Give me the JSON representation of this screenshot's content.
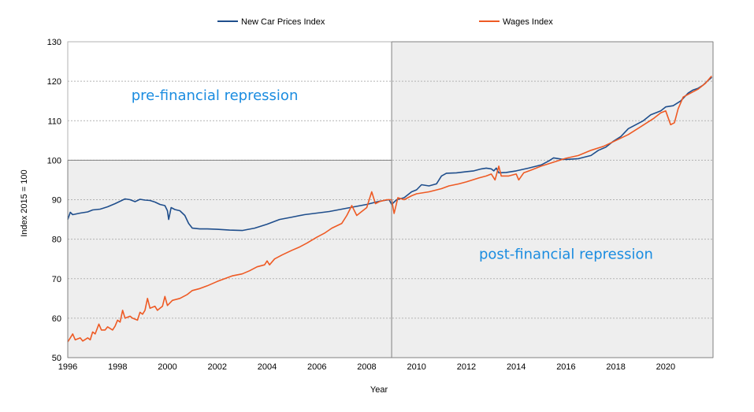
{
  "chart_data": {
    "type": "line",
    "xlabel": "Year",
    "ylabel": "Index 2015 = 100",
    "xlim": [
      1996,
      2021.9
    ],
    "ylim": [
      50,
      130
    ],
    "x_ticks": [
      1996,
      1998,
      2000,
      2002,
      2004,
      2006,
      2008,
      2010,
      2012,
      2014,
      2016,
      2018,
      2020
    ],
    "x_tick_labels": [
      "1996",
      "1998",
      "2000",
      "2002",
      "2004",
      "2006",
      "2008",
      "2010",
      "2012",
      "2014",
      "2016",
      "2018",
      "2020"
    ],
    "y_ticks": [
      50,
      60,
      70,
      80,
      90,
      100,
      110,
      120,
      130
    ],
    "y_tick_labels": [
      "50",
      "60",
      "70",
      "80",
      "90",
      "100",
      "110",
      "120",
      "130"
    ],
    "grid": "horizontal dotted",
    "legend_position": "top",
    "series": [
      {
        "name": "New Car Prices Index",
        "color": "#1f4e8c",
        "points": [
          [
            1996.0,
            85.0
          ],
          [
            1996.1,
            86.8
          ],
          [
            1996.2,
            86.2
          ],
          [
            1996.5,
            86.6
          ],
          [
            1996.8,
            86.9
          ],
          [
            1997.0,
            87.4
          ],
          [
            1997.3,
            87.6
          ],
          [
            1997.6,
            88.2
          ],
          [
            1997.9,
            89.0
          ],
          [
            1998.1,
            89.6
          ],
          [
            1998.3,
            90.2
          ],
          [
            1998.5,
            90.0
          ],
          [
            1998.7,
            89.5
          ],
          [
            1998.9,
            90.1
          ],
          [
            1999.1,
            89.9
          ],
          [
            1999.3,
            89.8
          ],
          [
            1999.5,
            89.4
          ],
          [
            1999.7,
            88.8
          ],
          [
            1999.9,
            88.5
          ],
          [
            2000.0,
            87.2
          ],
          [
            2000.05,
            85.0
          ],
          [
            2000.15,
            88.0
          ],
          [
            2000.3,
            87.5
          ],
          [
            2000.5,
            87.2
          ],
          [
            2000.7,
            86.0
          ],
          [
            2000.85,
            84.0
          ],
          [
            2001.0,
            82.8
          ],
          [
            2001.3,
            82.6
          ],
          [
            2001.6,
            82.6
          ],
          [
            2002.0,
            82.5
          ],
          [
            2002.5,
            82.3
          ],
          [
            2003.0,
            82.2
          ],
          [
            2003.5,
            82.8
          ],
          [
            2004.0,
            83.8
          ],
          [
            2004.5,
            85.0
          ],
          [
            2005.0,
            85.6
          ],
          [
            2005.5,
            86.2
          ],
          [
            2006.0,
            86.6
          ],
          [
            2006.5,
            87.0
          ],
          [
            2007.0,
            87.6
          ],
          [
            2007.5,
            88.2
          ],
          [
            2008.0,
            88.8
          ],
          [
            2008.5,
            89.6
          ],
          [
            2008.9,
            90.0
          ],
          [
            2009.0,
            88.8
          ],
          [
            2009.2,
            90.0
          ],
          [
            2009.5,
            90.5
          ],
          [
            2009.8,
            92.0
          ],
          [
            2010.0,
            92.5
          ],
          [
            2010.2,
            93.8
          ],
          [
            2010.5,
            93.5
          ],
          [
            2010.8,
            94.0
          ],
          [
            2011.0,
            96.0
          ],
          [
            2011.2,
            96.7
          ],
          [
            2011.6,
            96.8
          ],
          [
            2012.0,
            97.1
          ],
          [
            2012.3,
            97.3
          ],
          [
            2012.6,
            97.8
          ],
          [
            2012.8,
            98.0
          ],
          [
            2013.0,
            97.8
          ],
          [
            2013.1,
            97.3
          ],
          [
            2013.2,
            98.0
          ],
          [
            2013.3,
            96.8
          ],
          [
            2013.6,
            96.9
          ],
          [
            2014.0,
            97.3
          ],
          [
            2014.5,
            98.0
          ],
          [
            2015.0,
            98.8
          ],
          [
            2015.3,
            99.8
          ],
          [
            2015.5,
            100.6
          ],
          [
            2015.8,
            100.3
          ],
          [
            2016.0,
            100.2
          ],
          [
            2016.5,
            100.4
          ],
          [
            2017.0,
            101.2
          ],
          [
            2017.3,
            102.5
          ],
          [
            2017.6,
            103.3
          ],
          [
            2017.9,
            104.8
          ],
          [
            2018.2,
            106.0
          ],
          [
            2018.5,
            108.0
          ],
          [
            2018.8,
            109.0
          ],
          [
            2019.1,
            110.0
          ],
          [
            2019.4,
            111.5
          ],
          [
            2019.8,
            112.5
          ],
          [
            2020.0,
            113.5
          ],
          [
            2020.3,
            113.8
          ],
          [
            2020.6,
            115.0
          ],
          [
            2020.9,
            117.0
          ],
          [
            2021.1,
            117.8
          ],
          [
            2021.3,
            118.2
          ],
          [
            2021.5,
            119.0
          ],
          [
            2021.7,
            120.2
          ],
          [
            2021.85,
            121.0
          ]
        ]
      },
      {
        "name": "Wages Index",
        "color": "#ee5a24",
        "points": [
          [
            1996.0,
            54.0
          ],
          [
            1996.1,
            55.0
          ],
          [
            1996.2,
            56.0
          ],
          [
            1996.3,
            54.5
          ],
          [
            1996.5,
            55.0
          ],
          [
            1996.6,
            54.2
          ],
          [
            1996.8,
            55.0
          ],
          [
            1996.9,
            54.5
          ],
          [
            1997.0,
            56.5
          ],
          [
            1997.1,
            56.0
          ],
          [
            1997.25,
            58.5
          ],
          [
            1997.35,
            57.0
          ],
          [
            1997.5,
            57.0
          ],
          [
            1997.6,
            57.8
          ],
          [
            1997.8,
            57.0
          ],
          [
            1997.9,
            58.0
          ],
          [
            1998.0,
            59.5
          ],
          [
            1998.1,
            59.0
          ],
          [
            1998.2,
            62.0
          ],
          [
            1998.3,
            60.0
          ],
          [
            1998.5,
            60.5
          ],
          [
            1998.6,
            60.0
          ],
          [
            1998.8,
            59.5
          ],
          [
            1998.9,
            61.5
          ],
          [
            1999.0,
            61.0
          ],
          [
            1999.1,
            62.0
          ],
          [
            1999.2,
            65.0
          ],
          [
            1999.3,
            62.5
          ],
          [
            1999.5,
            63.0
          ],
          [
            1999.6,
            62.0
          ],
          [
            1999.8,
            63.0
          ],
          [
            1999.9,
            65.5
          ],
          [
            2000.0,
            63.2
          ],
          [
            2000.2,
            64.5
          ],
          [
            2000.5,
            65.0
          ],
          [
            2000.8,
            66.0
          ],
          [
            2001.0,
            67.0
          ],
          [
            2001.3,
            67.5
          ],
          [
            2001.6,
            68.2
          ],
          [
            2002.0,
            69.3
          ],
          [
            2002.3,
            70.0
          ],
          [
            2002.6,
            70.7
          ],
          [
            2003.0,
            71.2
          ],
          [
            2003.3,
            72.0
          ],
          [
            2003.6,
            73.0
          ],
          [
            2003.9,
            73.5
          ],
          [
            2004.0,
            74.5
          ],
          [
            2004.1,
            73.5
          ],
          [
            2004.3,
            75.0
          ],
          [
            2004.6,
            76.0
          ],
          [
            2005.0,
            77.2
          ],
          [
            2005.3,
            78.0
          ],
          [
            2005.6,
            79.0
          ],
          [
            2006.0,
            80.5
          ],
          [
            2006.3,
            81.5
          ],
          [
            2006.6,
            82.8
          ],
          [
            2007.0,
            84.0
          ],
          [
            2007.2,
            86.0
          ],
          [
            2007.4,
            88.5
          ],
          [
            2007.6,
            86.0
          ],
          [
            2007.8,
            87.0
          ],
          [
            2008.0,
            88.0
          ],
          [
            2008.1,
            90.0
          ],
          [
            2008.2,
            92.0
          ],
          [
            2008.35,
            89.0
          ],
          [
            2008.5,
            89.5
          ],
          [
            2008.8,
            90.0
          ],
          [
            2009.0,
            90.0
          ],
          [
            2009.1,
            86.5
          ],
          [
            2009.25,
            90.5
          ],
          [
            2009.5,
            90.0
          ],
          [
            2009.8,
            91.0
          ],
          [
            2010.0,
            91.5
          ],
          [
            2010.5,
            92.0
          ],
          [
            2011.0,
            92.8
          ],
          [
            2011.3,
            93.5
          ],
          [
            2011.7,
            94.0
          ],
          [
            2012.0,
            94.5
          ],
          [
            2012.5,
            95.5
          ],
          [
            2012.8,
            96.0
          ],
          [
            2013.0,
            96.5
          ],
          [
            2013.15,
            95.0
          ],
          [
            2013.3,
            98.5
          ],
          [
            2013.4,
            96.0
          ],
          [
            2013.7,
            96.0
          ],
          [
            2014.0,
            96.5
          ],
          [
            2014.1,
            95.0
          ],
          [
            2014.3,
            96.8
          ],
          [
            2014.6,
            97.5
          ],
          [
            2015.0,
            98.5
          ],
          [
            2015.5,
            99.5
          ],
          [
            2016.0,
            100.5
          ],
          [
            2016.5,
            101.2
          ],
          [
            2017.0,
            102.5
          ],
          [
            2017.5,
            103.5
          ],
          [
            2018.0,
            105.0
          ],
          [
            2018.5,
            106.5
          ],
          [
            2019.0,
            108.5
          ],
          [
            2019.5,
            110.5
          ],
          [
            2019.8,
            112.0
          ],
          [
            2020.0,
            112.5
          ],
          [
            2020.2,
            109.0
          ],
          [
            2020.35,
            109.5
          ],
          [
            2020.5,
            113.0
          ],
          [
            2020.7,
            116.0
          ],
          [
            2021.0,
            117.0
          ],
          [
            2021.3,
            118.0
          ],
          [
            2021.6,
            119.5
          ],
          [
            2021.8,
            121.0
          ],
          [
            2021.85,
            121.3
          ]
        ]
      }
    ],
    "annotations": [
      {
        "text": "pre-financial repression",
        "x": 2001.9,
        "y": 115.2,
        "color": "#1a8ce0"
      },
      {
        "text": "post-financial repression",
        "x": 2016.0,
        "y": 75.0,
        "color": "#1a8ce0"
      }
    ],
    "regions": [
      {
        "name": "pre-period",
        "x0": 1996,
        "x1": 2009,
        "y0": 50,
        "y1": 100,
        "fill": "#eeeeee"
      },
      {
        "name": "post-period",
        "x0": 2009,
        "x1": 2021.9,
        "y0": 50,
        "y1": 130,
        "fill": "#eeeeee"
      }
    ]
  }
}
